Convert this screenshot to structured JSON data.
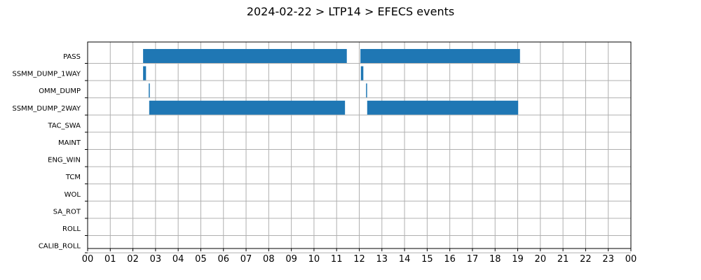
{
  "chart_data": {
    "type": "gantt",
    "title": "2024-02-22 > LTP14 > EFECS events",
    "x_tick_labels": [
      "00",
      "01",
      "02",
      "03",
      "04",
      "05",
      "06",
      "07",
      "08",
      "09",
      "10",
      "11",
      "12",
      "13",
      "14",
      "15",
      "16",
      "17",
      "18",
      "19",
      "20",
      "21",
      "22",
      "23",
      "00"
    ],
    "x_unit": "hour",
    "xlim": [
      0,
      24
    ],
    "grid": true,
    "colors": {
      "bar": "#1f77b4"
    },
    "rows": [
      {
        "label": "PASS",
        "intervals": [
          [
            2.45,
            11.45
          ],
          [
            12.05,
            19.1
          ]
        ]
      },
      {
        "label": "SSMM_DUMP_1WAY",
        "intervals": [
          [
            2.45,
            2.58
          ],
          [
            12.07,
            12.18
          ]
        ]
      },
      {
        "label": "OMM_DUMP",
        "intervals": [
          [
            2.7,
            2.74
          ],
          [
            12.3,
            12.34
          ]
        ]
      },
      {
        "label": "SSMM_DUMP_2WAY",
        "intervals": [
          [
            2.72,
            11.37
          ],
          [
            12.35,
            19.02
          ]
        ]
      },
      {
        "label": "TAC_SWA",
        "intervals": []
      },
      {
        "label": "MAINT",
        "intervals": []
      },
      {
        "label": "ENG_WIN",
        "intervals": []
      },
      {
        "label": "TCM",
        "intervals": []
      },
      {
        "label": "WOL",
        "intervals": []
      },
      {
        "label": "SA_ROT",
        "intervals": []
      },
      {
        "label": "ROLL",
        "intervals": []
      },
      {
        "label": "CALIB_ROLL",
        "intervals": []
      }
    ]
  }
}
